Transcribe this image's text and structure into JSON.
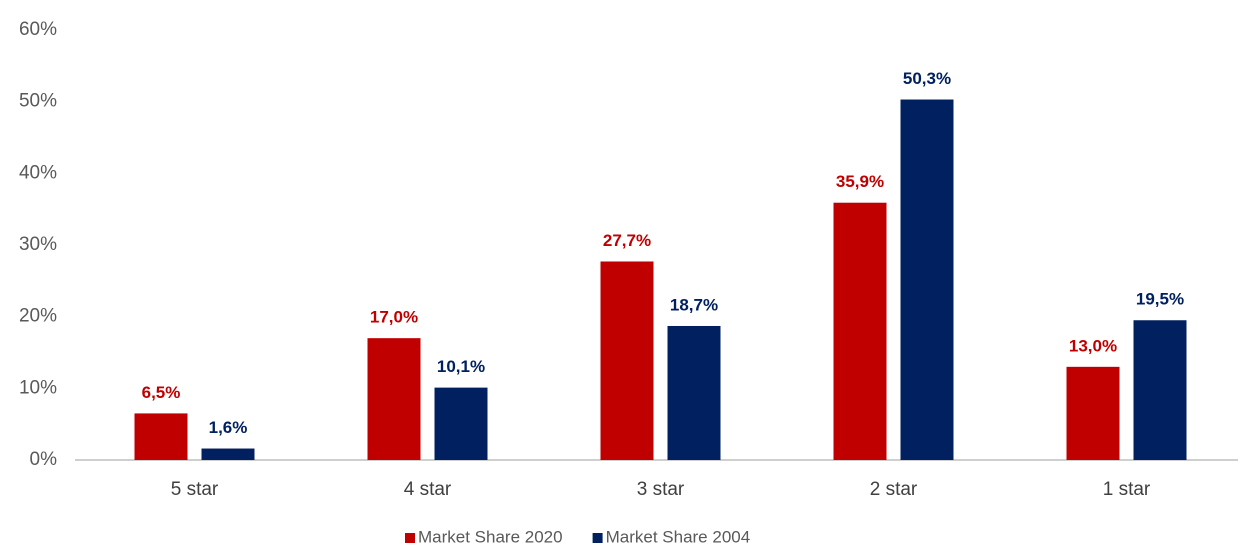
{
  "chart_data": {
    "type": "bar",
    "categories": [
      "5 star",
      "4 star",
      "3 star",
      "2 star",
      "1 star"
    ],
    "series": [
      {
        "name": "Market Share 2020",
        "color": "#c00000",
        "values": [
          6.5,
          17.0,
          27.7,
          35.9,
          13.0
        ],
        "value_labels": [
          "6,5%",
          "17,0%",
          "27,7%",
          "35,9%",
          "13,0%"
        ]
      },
      {
        "name": "Market Share 2004",
        "color": "#002060",
        "values": [
          1.6,
          10.1,
          18.7,
          50.3,
          19.5
        ],
        "value_labels": [
          "1,6%",
          "10,1%",
          "18,7%",
          "50,3%",
          "19,5%"
        ]
      }
    ],
    "ylim": [
      0,
      60
    ],
    "yticks": [
      {
        "value": 0,
        "label": "0%"
      },
      {
        "value": 10,
        "label": "10%"
      },
      {
        "value": 20,
        "label": "20%"
      },
      {
        "value": 30,
        "label": "30%"
      },
      {
        "value": 40,
        "label": "40%"
      },
      {
        "value": 50,
        "label": "50%"
      },
      {
        "value": 60,
        "label": "60%"
      }
    ],
    "grid": false,
    "legend": "bottom"
  }
}
